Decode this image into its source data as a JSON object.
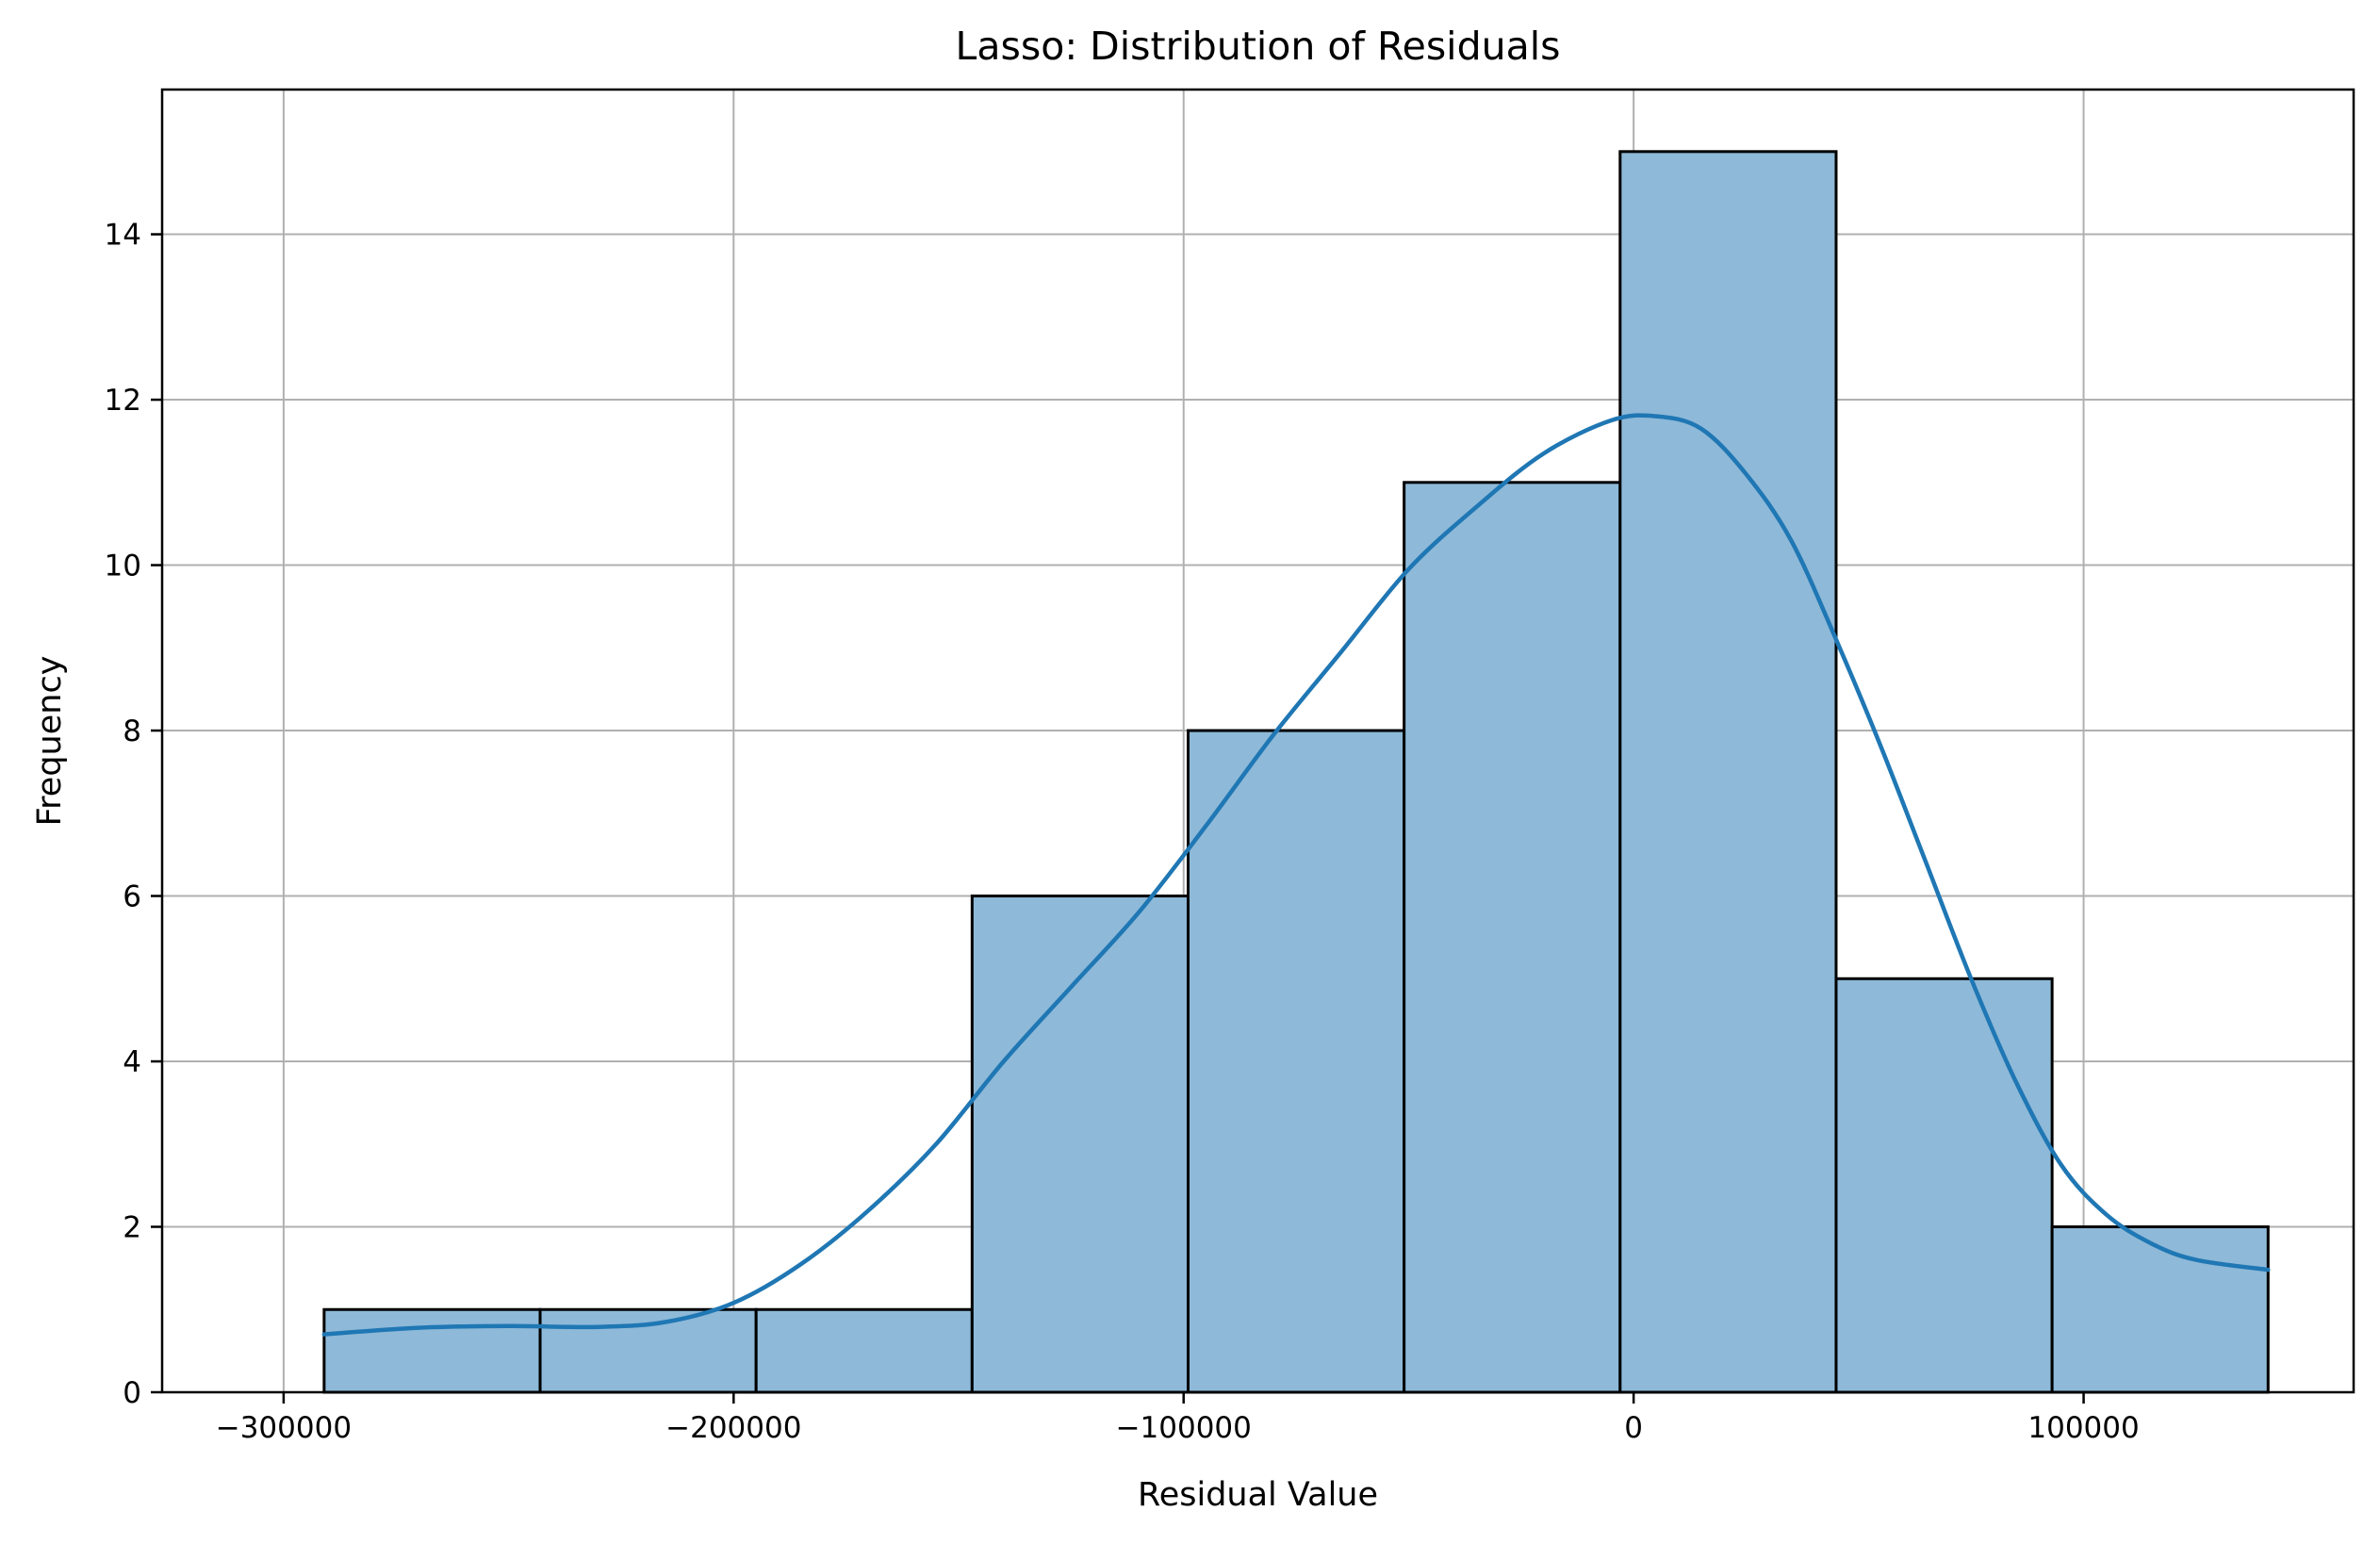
{
  "chart_data": {
    "type": "bar",
    "subtype": "histogram-with-kde",
    "title": "Lasso: Distribution of Residuals",
    "xlabel": "Residual Value",
    "ylabel": "Frequency",
    "xlim": [
      -327000,
      160000
    ],
    "ylim": [
      0,
      15.75
    ],
    "grid": true,
    "x_ticks": [
      {
        "value": -300000,
        "label": "−300000"
      },
      {
        "value": -200000,
        "label": "−200000"
      },
      {
        "value": -100000,
        "label": "−100000"
      },
      {
        "value": 0,
        "label": "0"
      },
      {
        "value": 100000,
        "label": "100000"
      }
    ],
    "y_ticks": [
      {
        "value": 0,
        "label": "0"
      },
      {
        "value": 2,
        "label": "2"
      },
      {
        "value": 4,
        "label": "4"
      },
      {
        "value": 6,
        "label": "6"
      },
      {
        "value": 8,
        "label": "8"
      },
      {
        "value": 10,
        "label": "10"
      },
      {
        "value": 12,
        "label": "12"
      },
      {
        "value": 14,
        "label": "14"
      }
    ],
    "bins": [
      {
        "start": -291000,
        "end": -243000,
        "count": 1
      },
      {
        "start": -243000,
        "end": -195000,
        "count": 1
      },
      {
        "start": -195000,
        "end": -147000,
        "count": 1
      },
      {
        "start": -147000,
        "end": -99000,
        "count": 6
      },
      {
        "start": -99000,
        "end": -51000,
        "count": 8
      },
      {
        "start": -51000,
        "end": -3000,
        "count": 11
      },
      {
        "start": -3000,
        "end": 45000,
        "count": 15
      },
      {
        "start": 45000,
        "end": 93000,
        "count": 5
      },
      {
        "start": 93000,
        "end": 141000,
        "count": 2
      }
    ],
    "kde": {
      "x": [
        -291000,
        -270000,
        -250000,
        -230000,
        -215000,
        -200000,
        -185000,
        -170000,
        -155000,
        -140000,
        -125000,
        -110000,
        -95000,
        -80000,
        -65000,
        -50000,
        -35000,
        -20000,
        -5000,
        5000,
        15000,
        25000,
        35000,
        45000,
        55000,
        65000,
        75000,
        85000,
        95000,
        105000,
        115000,
        125000,
        141000
      ],
      "y": [
        0.7,
        0.78,
        0.8,
        0.79,
        0.85,
        1.08,
        1.55,
        2.2,
        3.0,
        4.0,
        4.9,
        5.8,
        6.85,
        7.95,
        8.95,
        9.95,
        10.7,
        11.35,
        11.75,
        11.8,
        11.65,
        11.1,
        10.3,
        9.1,
        7.8,
        6.4,
        5.0,
        3.75,
        2.75,
        2.15,
        1.8,
        1.6,
        1.48
      ]
    },
    "colors": {
      "bar_fill": "#8eb9d8",
      "bar_edge": "#000000",
      "kde_line": "#1f77b4",
      "grid": "#b0b0b0"
    }
  }
}
